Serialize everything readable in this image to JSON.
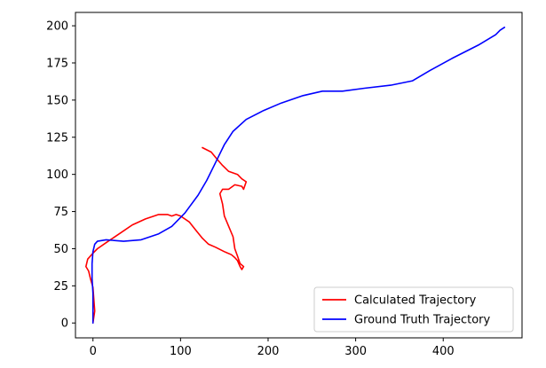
{
  "chart_data": {
    "type": "line",
    "title": "",
    "xlabel": "",
    "ylabel": "",
    "xlim": [
      -20,
      490
    ],
    "ylim": [
      -10,
      209
    ],
    "xticks": [
      0,
      100,
      200,
      300,
      400
    ],
    "yticks": [
      0,
      25,
      50,
      75,
      100,
      125,
      150,
      175,
      200
    ],
    "grid": false,
    "legend": "bottom-right",
    "series": [
      {
        "name": "Calculated Trajectory",
        "color": "#ff0000",
        "points": [
          [
            0,
            0
          ],
          [
            2,
            8
          ],
          [
            1,
            16
          ],
          [
            0,
            24
          ],
          [
            -3,
            30
          ],
          [
            -5,
            35
          ],
          [
            -8,
            38
          ],
          [
            -6,
            43
          ],
          [
            0,
            47
          ],
          [
            5,
            50
          ],
          [
            15,
            54
          ],
          [
            30,
            60
          ],
          [
            45,
            66
          ],
          [
            60,
            70
          ],
          [
            75,
            73
          ],
          [
            85,
            73
          ],
          [
            90,
            72
          ],
          [
            95,
            73
          ],
          [
            100,
            72
          ],
          [
            110,
            68
          ],
          [
            118,
            62
          ],
          [
            125,
            57
          ],
          [
            132,
            53
          ],
          [
            140,
            51
          ],
          [
            150,
            48
          ],
          [
            158,
            46
          ],
          [
            162,
            44
          ],
          [
            165,
            42
          ],
          [
            168,
            38
          ],
          [
            170,
            36
          ],
          [
            172,
            38
          ],
          [
            168,
            40
          ],
          [
            165,
            45
          ],
          [
            162,
            50
          ],
          [
            160,
            58
          ],
          [
            155,
            65
          ],
          [
            150,
            72
          ],
          [
            148,
            80
          ],
          [
            145,
            87
          ],
          [
            148,
            90
          ],
          [
            155,
            90
          ],
          [
            162,
            93
          ],
          [
            170,
            92
          ],
          [
            172,
            90
          ],
          [
            175,
            95
          ],
          [
            170,
            97
          ],
          [
            165,
            100
          ],
          [
            155,
            102
          ],
          [
            148,
            106
          ],
          [
            142,
            110
          ],
          [
            135,
            115
          ],
          [
            125,
            118
          ]
        ]
      },
      {
        "name": "Ground Truth Trajectory",
        "color": "#0000ff",
        "points": [
          [
            0,
            0
          ],
          [
            0,
            10
          ],
          [
            0,
            20
          ],
          [
            -1,
            30
          ],
          [
            -1,
            40
          ],
          [
            0,
            48
          ],
          [
            2,
            53
          ],
          [
            5,
            55
          ],
          [
            15,
            56
          ],
          [
            35,
            55
          ],
          [
            55,
            56
          ],
          [
            75,
            60
          ],
          [
            90,
            65
          ],
          [
            105,
            74
          ],
          [
            120,
            86
          ],
          [
            130,
            96
          ],
          [
            140,
            108
          ],
          [
            150,
            120
          ],
          [
            160,
            129
          ],
          [
            175,
            137
          ],
          [
            195,
            143
          ],
          [
            215,
            148
          ],
          [
            240,
            153
          ],
          [
            262,
            156
          ],
          [
            285,
            156
          ],
          [
            310,
            158
          ],
          [
            340,
            160
          ],
          [
            365,
            163
          ],
          [
            385,
            170
          ],
          [
            410,
            178
          ],
          [
            440,
            187
          ],
          [
            460,
            194
          ],
          [
            465,
            197
          ],
          [
            470,
            199
          ]
        ]
      }
    ]
  }
}
